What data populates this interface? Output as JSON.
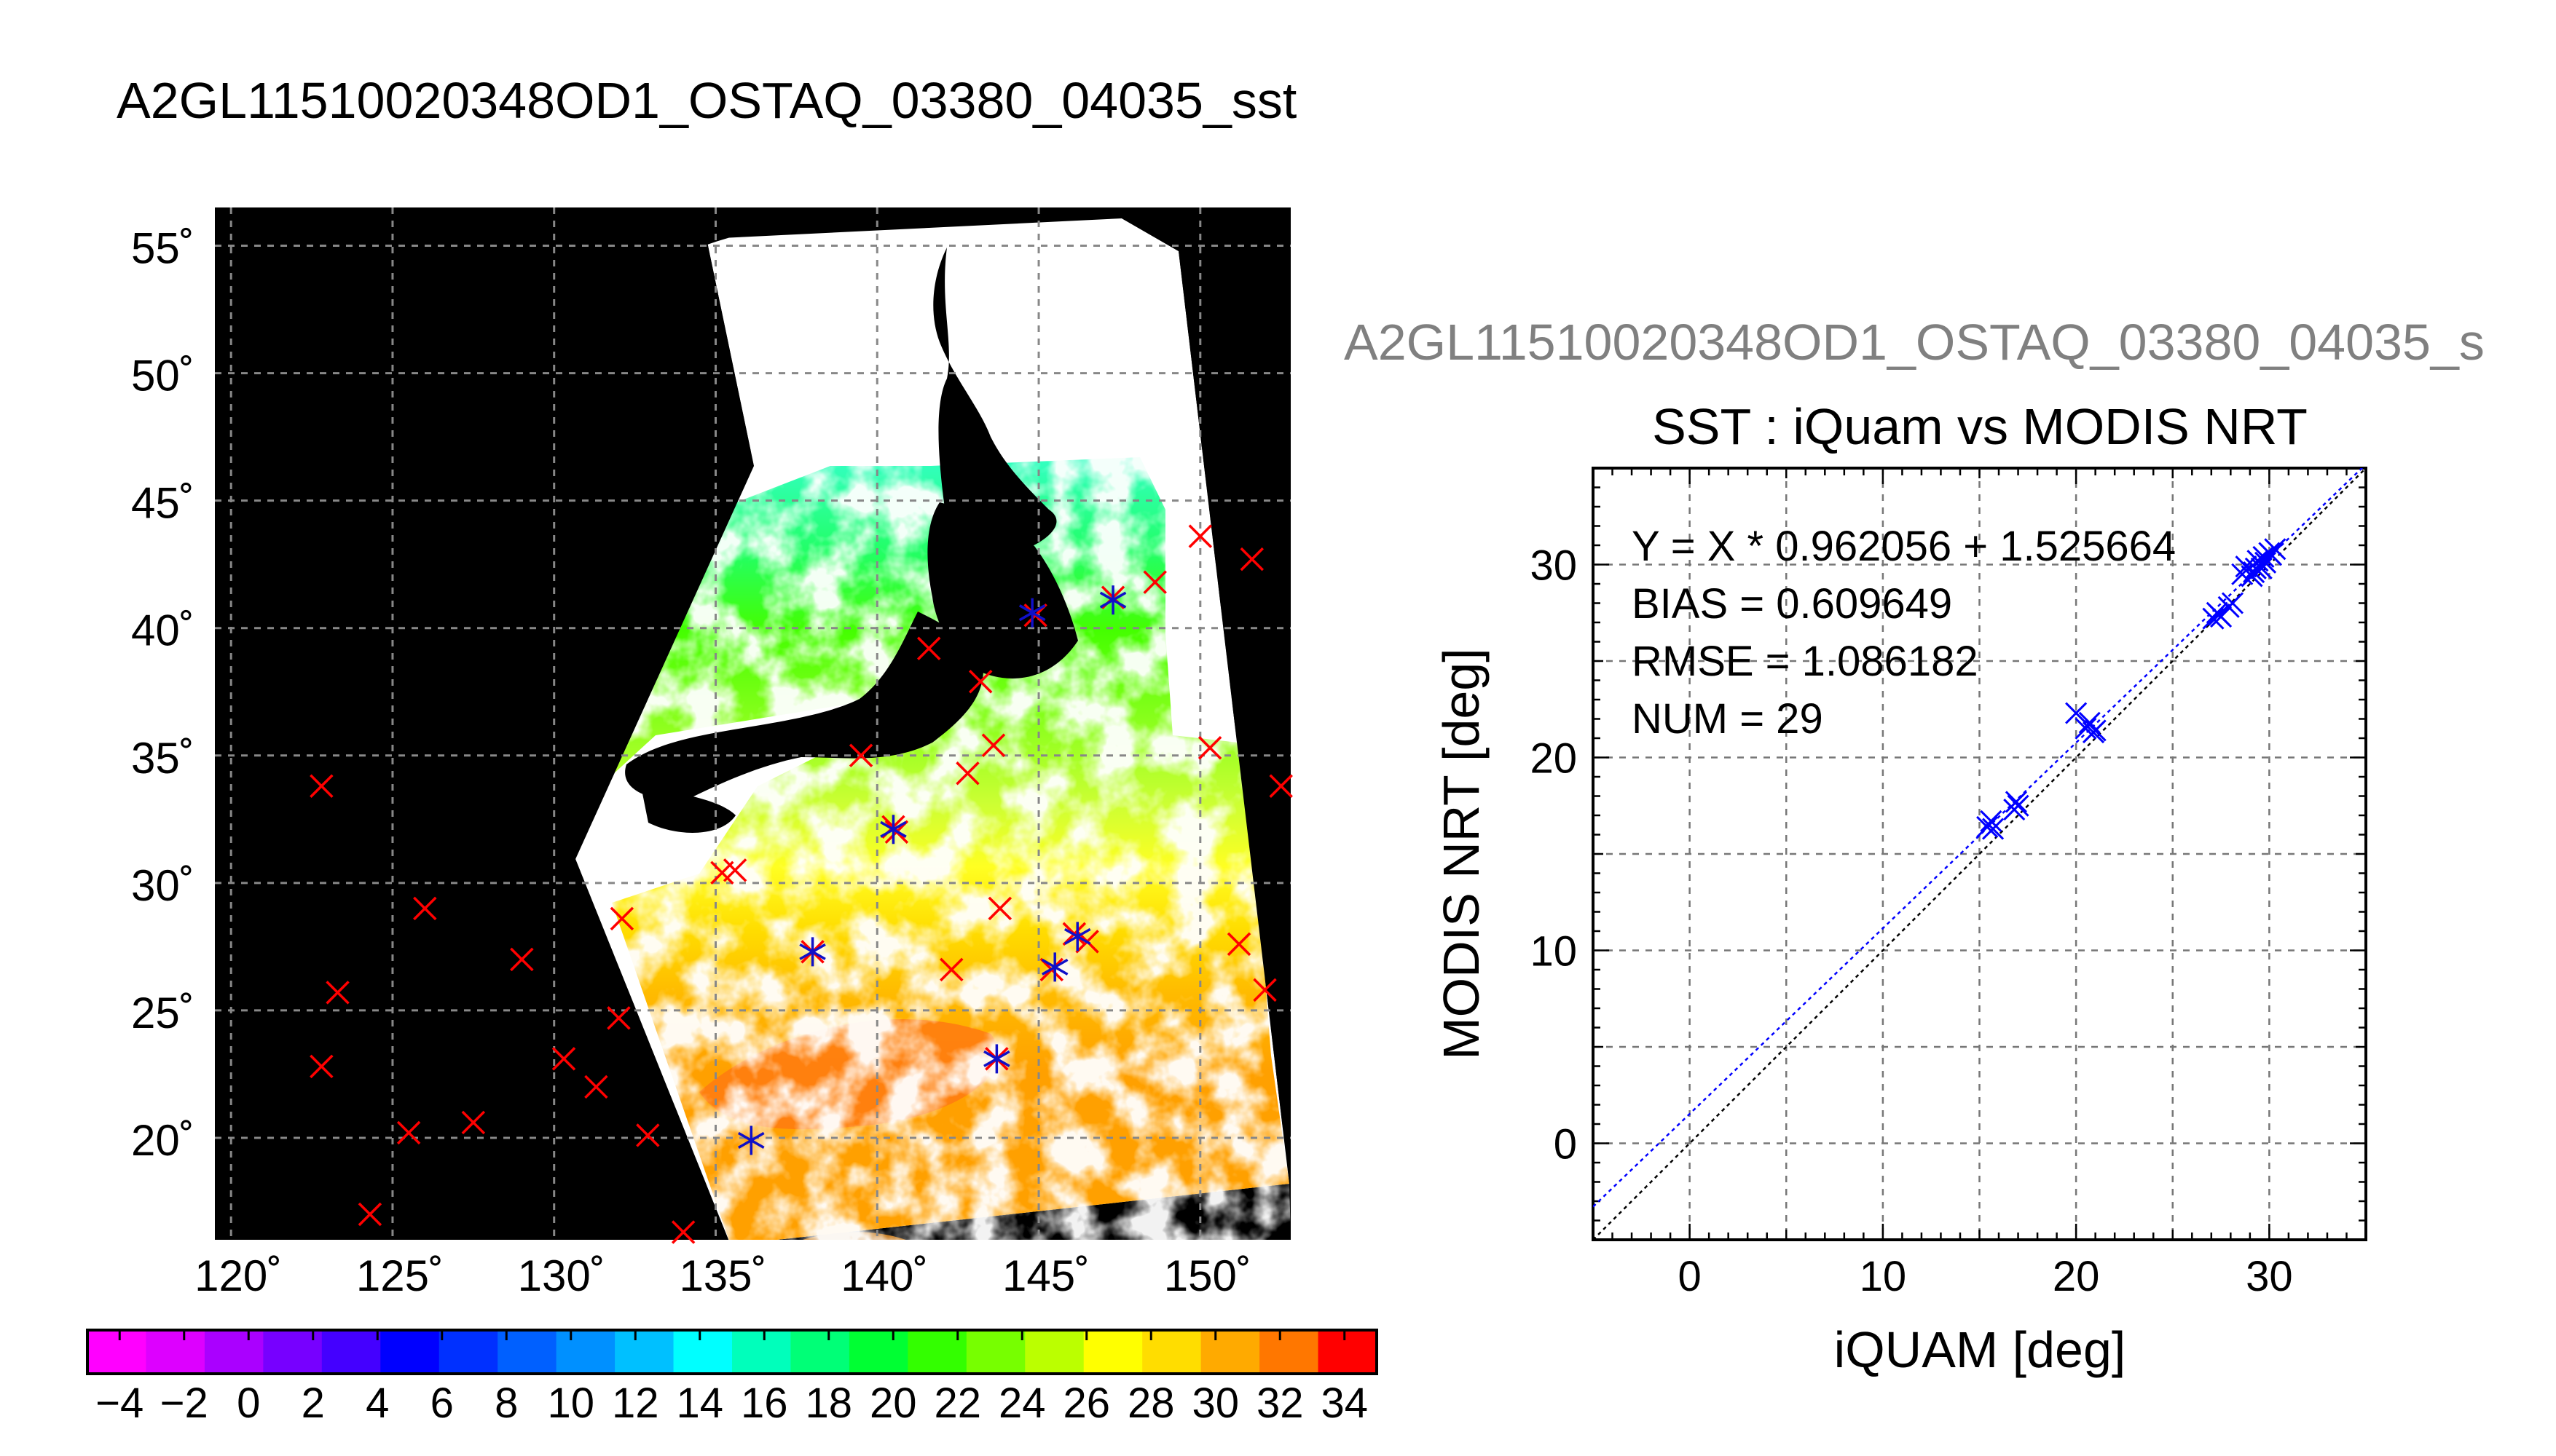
{
  "figure": {
    "main_title": "A2GL11510020348OD1_OSTAQ_03380_04035_sst",
    "scatter_suptitle": "A2GL11510020348OD1_OSTAQ_03380_04035_s"
  },
  "chart_data": [
    {
      "type": "map",
      "title": "",
      "xlabel": "",
      "ylabel": "",
      "lon_ticks": [
        "120˚",
        "125˚",
        "130˚",
        "135˚",
        "140˚",
        "145˚",
        "150˚"
      ],
      "lon_tick_values": [
        120,
        125,
        130,
        135,
        140,
        145,
        150
      ],
      "lat_ticks": [
        "55˚",
        "50˚",
        "45˚",
        "40˚",
        "35˚",
        "30˚",
        "25˚",
        "20˚"
      ],
      "lat_tick_values": [
        55,
        50,
        45,
        40,
        35,
        30,
        25,
        20
      ],
      "lon_range": [
        119.5,
        152.8
      ],
      "lat_range": [
        16.0,
        56.5
      ],
      "grid": true,
      "colorbar": {
        "min": -5,
        "max": 35,
        "step": 2,
        "tick_labels": [
          "−4",
          "−2",
          "0",
          "2",
          "4",
          "6",
          "8",
          "10",
          "12",
          "14",
          "16",
          "18",
          "20",
          "22",
          "24",
          "26",
          "28",
          "30",
          "32",
          "34"
        ],
        "tick_values": [
          -4,
          -2,
          0,
          2,
          4,
          6,
          8,
          10,
          12,
          14,
          16,
          18,
          20,
          22,
          24,
          26,
          28,
          30,
          32,
          34
        ],
        "colors": [
          "#ff00ff",
          "#dd00ff",
          "#aa00ff",
          "#7700ff",
          "#4400ff",
          "#0000ff",
          "#0030ff",
          "#0060ff",
          "#0090ff",
          "#00c0ff",
          "#00ffff",
          "#00ffbb",
          "#00ff77",
          "#00ff33",
          "#33ff00",
          "#77ff00",
          "#bbff00",
          "#ffff00",
          "#ffdd00",
          "#ffaa00",
          "#ff7700",
          "#ff0000"
        ]
      },
      "buoys_red_x": [
        [
          122.8,
          33.8
        ],
        [
          123.3,
          25.7
        ],
        [
          122.8,
          22.8
        ],
        [
          124.3,
          17.0
        ],
        [
          125.5,
          20.2
        ],
        [
          126.0,
          29.0
        ],
        [
          127.5,
          20.6
        ],
        [
          129.0,
          27.0
        ],
        [
          130.3,
          23.1
        ],
        [
          131.3,
          22.0
        ],
        [
          132.0,
          24.7
        ],
        [
          132.1,
          28.6
        ],
        [
          132.9,
          20.1
        ],
        [
          134.0,
          16.3
        ],
        [
          135.2,
          30.4
        ],
        [
          135.6,
          30.5
        ],
        [
          138.0,
          27.3
        ],
        [
          139.5,
          35.0
        ],
        [
          140.5,
          32.2
        ],
        [
          140.6,
          32.0
        ],
        [
          141.6,
          39.2
        ],
        [
          142.3,
          26.6
        ],
        [
          142.8,
          34.3
        ],
        [
          143.2,
          37.9
        ],
        [
          143.6,
          35.4
        ],
        [
          143.8,
          29.0
        ],
        [
          143.7,
          23.1
        ],
        [
          144.9,
          40.5
        ],
        [
          145.4,
          26.6
        ],
        [
          146.1,
          28.0
        ],
        [
          146.5,
          27.7
        ],
        [
          147.3,
          41.2
        ],
        [
          148.6,
          41.8
        ],
        [
          150.0,
          43.6
        ],
        [
          150.3,
          35.3
        ],
        [
          151.2,
          27.6
        ],
        [
          151.6,
          42.7
        ],
        [
          152.0,
          25.8
        ],
        [
          152.5,
          33.8
        ]
      ],
      "buoys_blue_star": [
        [
          136.1,
          19.9
        ],
        [
          138.0,
          27.3
        ],
        [
          140.5,
          32.1
        ],
        [
          143.7,
          23.1
        ],
        [
          144.8,
          40.6
        ],
        [
          145.5,
          26.7
        ],
        [
          146.2,
          27.9
        ],
        [
          147.3,
          41.1
        ]
      ]
    },
    {
      "type": "scatter",
      "title": "SST : iQuam vs MODIS NRT",
      "xlabel": "iQUAM [deg]",
      "ylabel": "MODIS NRT [deg]",
      "xlim": [
        -5,
        35
      ],
      "ylim": [
        -5,
        35
      ],
      "xticks": [
        0,
        10,
        20,
        30
      ],
      "yticks": [
        0,
        10,
        20,
        30
      ],
      "grid": true,
      "annotations": [
        "Y = X * 0.962056 + 1.525664",
        "BIAS = 0.609649",
        "RMSE = 1.086182",
        "NUM = 29"
      ],
      "fit": {
        "slope": 0.962056,
        "intercept": 1.525664
      },
      "series": [
        {
          "x": [
            15.4,
            15.6,
            15.7,
            16.8,
            16.9,
            17.0,
            20.0,
            20.5,
            20.7,
            20.9,
            21.0,
            27.1,
            27.3,
            27.5,
            27.9,
            28.1,
            28.6,
            28.8,
            29.1,
            29.3,
            29.4,
            29.6,
            29.7,
            29.8,
            30.0,
            30.1,
            30.3,
            27.4,
            29.2
          ],
          "y": [
            16.4,
            16.7,
            16.3,
            17.3,
            17.7,
            17.5,
            22.3,
            21.5,
            21.8,
            21.3,
            21.4,
            27.2,
            27.5,
            27.3,
            27.8,
            28.0,
            29.5,
            29.9,
            29.4,
            29.8,
            30.2,
            29.8,
            30.4,
            30.1,
            30.6,
            30.5,
            30.8,
            27.4,
            29.6
          ]
        }
      ]
    }
  ]
}
